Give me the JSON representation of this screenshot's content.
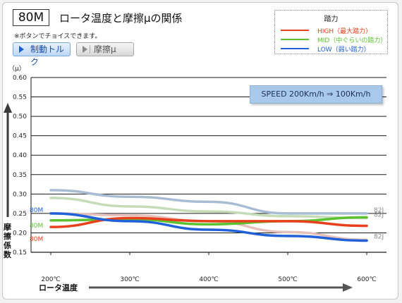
{
  "header": {
    "model": "80M",
    "title": "ロータ温度と摩擦μの関係",
    "note": "※ボタンでチョイスできます。"
  },
  "buttons": {
    "torque_label": "制動トルク",
    "mu_label": "摩擦μ"
  },
  "legend": {
    "title": "踏力",
    "items": [
      {
        "label": "HIGH（最大踏力）",
        "color": "#e8401c"
      },
      {
        "label": "MID（中ぐらいの踏力）",
        "color": "#5cc232"
      },
      {
        "label": "LOW（弱い踏力）",
        "color": "#2060d8"
      }
    ]
  },
  "speed_label": "SPEED 200Km/h ⇒ 100Km/h",
  "chart_data": {
    "type": "line",
    "x": [
      200,
      300,
      400,
      500,
      600
    ],
    "x_tick_labels": [
      "200℃",
      "300℃",
      "400℃",
      "500℃",
      "600℃"
    ],
    "ylim": [
      0.15,
      0.6
    ],
    "y_ticks": [
      0.15,
      0.2,
      0.25,
      0.3,
      0.35,
      0.4,
      0.45,
      0.5,
      0.55,
      0.6
    ],
    "y_tick_labels": [
      "0.15",
      "0.20",
      "0.25",
      "0.30",
      "0.35",
      "0.40",
      "0.45",
      "0.50",
      "0.55",
      "0.60"
    ],
    "y_unit": "（μ）",
    "ylabel": "摩擦係数",
    "xlabel": "ロータ温度",
    "grid": true,
    "series": [
      {
        "name": "HIGH",
        "color": "#e8401c",
        "start_label": "80M",
        "values": [
          0.215,
          0.238,
          0.23,
          0.23,
          0.218
        ]
      },
      {
        "name": "MID",
        "color": "#5cc232",
        "start_label": "80M",
        "values": [
          0.232,
          0.235,
          0.222,
          0.23,
          0.24
        ]
      },
      {
        "name": "LOW",
        "color": "#2060d8",
        "start_label": "80M",
        "values": [
          0.25,
          0.23,
          0.208,
          0.192,
          0.18
        ]
      },
      {
        "name": "82J-1",
        "color": "#a8bcd4",
        "end_label": "82J",
        "values": [
          0.31,
          0.293,
          0.28,
          0.25,
          0.25
        ]
      },
      {
        "name": "82J-2",
        "color": "#c6dcb8",
        "end_label": "82J",
        "values": [
          0.29,
          0.268,
          0.255,
          0.243,
          0.238
        ]
      },
      {
        "name": "82J-3",
        "color": "#e6c0ba",
        "end_label": "82J",
        "values": [
          0.25,
          0.245,
          0.23,
          0.202,
          0.182
        ]
      }
    ]
  }
}
